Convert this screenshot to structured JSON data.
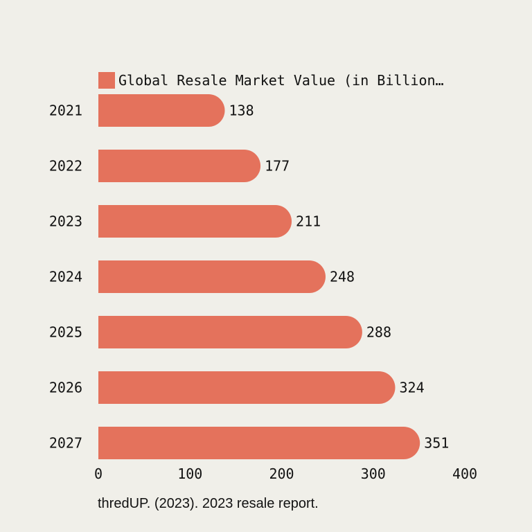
{
  "chart_data": {
    "type": "bar",
    "orientation": "horizontal",
    "categories": [
      "2021",
      "2022",
      "2023",
      "2024",
      "2025",
      "2026",
      "2027"
    ],
    "series": [
      {
        "name": "Global Resale Market Value (in Billion…",
        "values": [
          138,
          177,
          211,
          248,
          288,
          324,
          351
        ]
      }
    ],
    "x_ticks": [
      0,
      100,
      200,
      300,
      400
    ],
    "xlim": [
      0,
      400
    ],
    "grid": false,
    "legend_position": "top-left",
    "bar_color": "#e4725c",
    "text_color": "#111111"
  },
  "source": "thredUP. (2023). 2023 resale report."
}
